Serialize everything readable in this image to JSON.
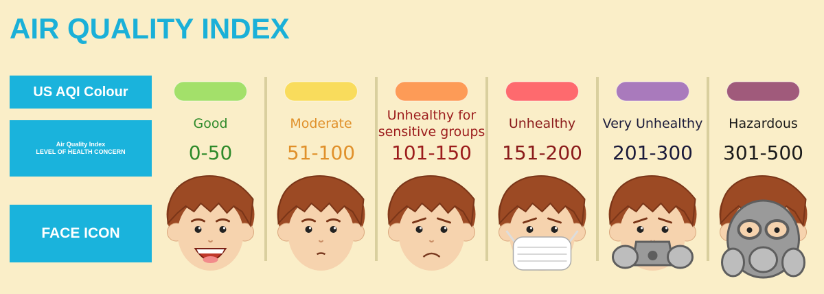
{
  "header": {
    "title": "AIR QUALITY INDEX"
  },
  "row_labels": {
    "colour": "US AQI Colour",
    "concern_line1": "Air Quality Index",
    "concern_line2": "LEVEL OF HEALTH CONCERN",
    "face": "FACE ICON"
  },
  "levels": [
    {
      "name": "Good",
      "range": "0-50",
      "color": "#a3e06a",
      "text_color": "#2e8a2a"
    },
    {
      "name": "Moderate",
      "range": "51-100",
      "color": "#f9dc5c",
      "text_color": "#e0902a"
    },
    {
      "name": "Unhealthy for sensitive groups",
      "range": "101-150",
      "color": "#fd9b57",
      "text_color": "#9c1c1c"
    },
    {
      "name": "Unhealthy",
      "range": "151-200",
      "color": "#fe6a6e",
      "text_color": "#8a1a1a"
    },
    {
      "name": "Very Unhealthy",
      "range": "201-300",
      "color": "#a97abc",
      "text_color": "#1a1a3a"
    },
    {
      "name": "Hazardous",
      "range": "301-500",
      "color": "#a05a7b",
      "text_color": "#1a1a1a"
    }
  ]
}
